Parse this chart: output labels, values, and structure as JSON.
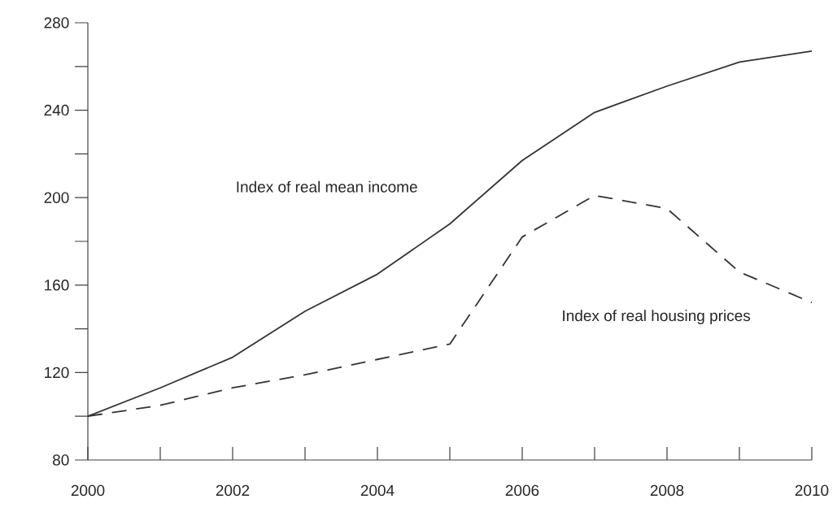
{
  "chart_data": {
    "type": "line",
    "x": [
      2000,
      2001,
      2002,
      2003,
      2004,
      2005,
      2006,
      2007,
      2008,
      2009,
      2010
    ],
    "series": [
      {
        "name": "Index of real mean income",
        "color": "#333333",
        "line_style": "solid",
        "values": [
          100,
          113,
          127,
          148,
          165,
          188,
          217,
          239,
          251,
          262,
          267
        ]
      },
      {
        "name": "Index of real housing prices",
        "color": "#333333",
        "line_style": "dashed",
        "values": [
          100,
          105,
          113,
          119,
          126,
          133,
          182,
          201,
          195,
          166,
          152
        ]
      }
    ],
    "xlim": [
      2000,
      2010
    ],
    "xticks": [
      2000,
      2002,
      2004,
      2006,
      2008,
      2010
    ],
    "ylim": [
      80,
      280
    ],
    "yticks": [
      80,
      {
        "value": 100,
        "label": null
      },
      120,
      {
        "value": 140,
        "label": null
      },
      160,
      {
        "value": 180,
        "label": null
      },
      200,
      {
        "value": 220,
        "label": null
      },
      240,
      {
        "value": 260,
        "label": null
      },
      280
    ],
    "grid": false,
    "legend": false
  }
}
